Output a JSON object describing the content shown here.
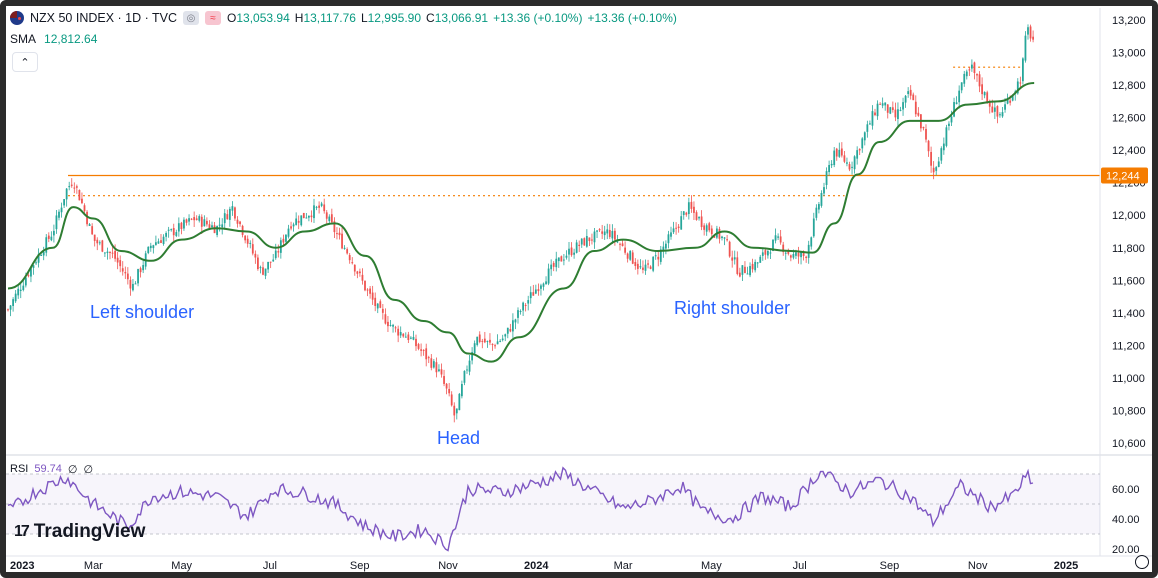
{
  "header": {
    "symbol": "NZX 50 INDEX · 1D · TVC",
    "open_label": "O",
    "open": "13,053.94",
    "high_label": "H",
    "high": "13,117.76",
    "low_label": "L",
    "low": "12,995.90",
    "close_label": "C",
    "close": "13,066.91",
    "change": "+13.36 (+0.10%)",
    "change2": "+13.36 (+0.10%)",
    "btn_eye_icon": "eye-icon",
    "btn_alert_icon": "wave-icon"
  },
  "sma": {
    "label": "SMA",
    "value": "12,812.64"
  },
  "rsi": {
    "label": "RSI",
    "value": "59.74",
    "v2": "∅",
    "v3": "∅"
  },
  "logo": {
    "mark": "17",
    "text": "TradingView"
  },
  "colors": {
    "up": "#26a69a",
    "down": "#ef5350",
    "sma": "#2e7d32",
    "rsi": "#7e57c2",
    "resistance": "#f57c00",
    "annotation": "#2962ff",
    "price_tag": "#f57c00"
  },
  "chart_data": [
    {
      "type": "candlestick",
      "title": "NZX 50 INDEX · 1D · TVC",
      "x_ticks": [
        "2023",
        "Mar",
        "May",
        "Jul",
        "Sep",
        "Nov",
        "2024",
        "Mar",
        "May",
        "Jul",
        "Sep",
        "Nov",
        "2025"
      ],
      "y_ticks": [
        "13,200",
        "13,000",
        "12,800",
        "12,600",
        "12,400",
        "12,200",
        "12,000",
        "11,800",
        "11,600",
        "11,400",
        "11,200",
        "11,000",
        "10,800",
        "10,600"
      ],
      "ylim": [
        10550,
        13250
      ],
      "price_tag": "12,244",
      "horizontal_levels": [
        {
          "value": 12244,
          "style": "solid",
          "from": "2023-02",
          "to": "2025-01"
        },
        {
          "value": 12120,
          "style": "dotted",
          "from": "2023-02",
          "to": "2024-08"
        },
        {
          "value": 12910,
          "style": "dotted",
          "from": "2024-10",
          "to": "2024-12"
        }
      ],
      "annotations": [
        {
          "text": "Left shoulder",
          "date": "2023-04"
        },
        {
          "text": "Head",
          "date": "2023-11"
        },
        {
          "text": "Right shoulder",
          "date": "2024-05"
        }
      ],
      "close_path": [
        [
          "2023-01-01",
          11420
        ],
        [
          "2023-01-15",
          11650
        ],
        [
          "2023-02-01",
          11900
        ],
        [
          "2023-02-10",
          12150
        ],
        [
          "2023-02-15",
          12220
        ],
        [
          "2023-02-22",
          12050
        ],
        [
          "2023-03-01",
          11850
        ],
        [
          "2023-03-15",
          11750
        ],
        [
          "2023-03-28",
          11560
        ],
        [
          "2023-04-10",
          11820
        ],
        [
          "2023-04-25",
          11900
        ],
        [
          "2023-05-10",
          11980
        ],
        [
          "2023-05-25",
          11920
        ],
        [
          "2023-06-05",
          12050
        ],
        [
          "2023-06-15",
          11850
        ],
        [
          "2023-06-25",
          11650
        ],
        [
          "2023-07-05",
          11750
        ],
        [
          "2023-07-15",
          11950
        ],
        [
          "2023-07-25",
          12000
        ],
        [
          "2023-08-05",
          12050
        ],
        [
          "2023-08-15",
          11900
        ],
        [
          "2023-08-25",
          11750
        ],
        [
          "2023-09-05",
          11550
        ],
        [
          "2023-09-15",
          11400
        ],
        [
          "2023-09-25",
          11300
        ],
        [
          "2023-10-05",
          11250
        ],
        [
          "2023-10-15",
          11150
        ],
        [
          "2023-10-25",
          11050
        ],
        [
          "2023-11-01",
          10900
        ],
        [
          "2023-11-06",
          10750
        ],
        [
          "2023-11-12",
          11000
        ],
        [
          "2023-11-20",
          11250
        ],
        [
          "2023-12-01",
          11200
        ],
        [
          "2023-12-10",
          11250
        ],
        [
          "2023-12-20",
          11400
        ],
        [
          "2024-01-05",
          11600
        ],
        [
          "2024-01-20",
          11750
        ],
        [
          "2024-02-05",
          11850
        ],
        [
          "2024-02-20",
          11900
        ],
        [
          "2024-03-01",
          11800
        ],
        [
          "2024-03-15",
          11650
        ],
        [
          "2024-03-25",
          11750
        ],
        [
          "2024-04-05",
          11900
        ],
        [
          "2024-04-15",
          12050
        ],
        [
          "2024-04-25",
          11950
        ],
        [
          "2024-05-10",
          11850
        ],
        [
          "2024-05-20",
          11650
        ],
        [
          "2024-06-01",
          11700
        ],
        [
          "2024-06-15",
          11850
        ],
        [
          "2024-06-25",
          11750
        ],
        [
          "2024-07-05",
          11750
        ],
        [
          "2024-07-15",
          12100
        ],
        [
          "2024-07-25",
          12400
        ],
        [
          "2024-08-05",
          12300
        ],
        [
          "2024-08-15",
          12500
        ],
        [
          "2024-08-25",
          12700
        ],
        [
          "2024-09-05",
          12600
        ],
        [
          "2024-09-15",
          12750
        ],
        [
          "2024-09-25",
          12500
        ],
        [
          "2024-10-01",
          12250
        ],
        [
          "2024-10-10",
          12500
        ],
        [
          "2024-10-20",
          12800
        ],
        [
          "2024-10-28",
          12900
        ],
        [
          "2024-11-05",
          12750
        ],
        [
          "2024-11-15",
          12600
        ],
        [
          "2024-11-25",
          12750
        ],
        [
          "2024-12-01",
          12850
        ],
        [
          "2024-12-05",
          13150
        ],
        [
          "2024-12-10",
          13066.91
        ]
      ],
      "sma_path": [
        [
          "2023-01-01",
          11550
        ],
        [
          "2023-02-01",
          11800
        ],
        [
          "2023-02-15",
          12050
        ],
        [
          "2023-03-01",
          11980
        ],
        [
          "2023-03-20",
          11780
        ],
        [
          "2023-04-10",
          11720
        ],
        [
          "2023-05-01",
          11850
        ],
        [
          "2023-05-25",
          11920
        ],
        [
          "2023-06-15",
          11900
        ],
        [
          "2023-07-05",
          11800
        ],
        [
          "2023-07-25",
          11900
        ],
        [
          "2023-08-15",
          11950
        ],
        [
          "2023-09-05",
          11750
        ],
        [
          "2023-09-25",
          11480
        ],
        [
          "2023-10-15",
          11350
        ],
        [
          "2023-11-01",
          11280
        ],
        [
          "2023-11-15",
          11150
        ],
        [
          "2023-12-01",
          11100
        ],
        [
          "2023-12-20",
          11250
        ],
        [
          "2024-01-20",
          11550
        ],
        [
          "2024-02-10",
          11780
        ],
        [
          "2024-03-01",
          11850
        ],
        [
          "2024-03-25",
          11780
        ],
        [
          "2024-04-20",
          11800
        ],
        [
          "2024-05-10",
          11900
        ],
        [
          "2024-05-30",
          11800
        ],
        [
          "2024-06-25",
          11780
        ],
        [
          "2024-07-10",
          11770
        ],
        [
          "2024-07-25",
          11950
        ],
        [
          "2024-08-10",
          12250
        ],
        [
          "2024-08-25",
          12450
        ],
        [
          "2024-09-15",
          12580
        ],
        [
          "2024-10-05",
          12580
        ],
        [
          "2024-10-25",
          12680
        ],
        [
          "2024-11-15",
          12700
        ],
        [
          "2024-12-10",
          12812.64
        ]
      ]
    },
    {
      "type": "line",
      "title": "RSI",
      "y_ticks": [
        "60.00",
        "40.00",
        "20.00"
      ],
      "ylim": [
        18,
        78
      ],
      "levels": [
        70,
        50,
        30
      ],
      "series": [
        {
          "name": "RSI",
          "points": [
            [
              "2023-01-01",
              45
            ],
            [
              "2023-01-20",
              58
            ],
            [
              "2023-02-10",
              68
            ],
            [
              "2023-03-01",
              50
            ],
            [
              "2023-03-25",
              35
            ],
            [
              "2023-04-10",
              55
            ],
            [
              "2023-05-01",
              58
            ],
            [
              "2023-05-25",
              55
            ],
            [
              "2023-06-15",
              42
            ],
            [
              "2023-07-05",
              60
            ],
            [
              "2023-07-25",
              57
            ],
            [
              "2023-08-15",
              50
            ],
            [
              "2023-09-05",
              35
            ],
            [
              "2023-09-25",
              28
            ],
            [
              "2023-10-15",
              33
            ],
            [
              "2023-11-01",
              22
            ],
            [
              "2023-11-15",
              60
            ],
            [
              "2023-12-10",
              58
            ],
            [
              "2024-01-05",
              65
            ],
            [
              "2024-01-20",
              70
            ],
            [
              "2024-02-10",
              58
            ],
            [
              "2024-03-01",
              47
            ],
            [
              "2024-03-20",
              52
            ],
            [
              "2024-04-10",
              62
            ],
            [
              "2024-04-25",
              45
            ],
            [
              "2024-05-15",
              40
            ],
            [
              "2024-06-05",
              55
            ],
            [
              "2024-06-25",
              48
            ],
            [
              "2024-07-15",
              72
            ],
            [
              "2024-08-05",
              58
            ],
            [
              "2024-08-25",
              66
            ],
            [
              "2024-09-15",
              55
            ],
            [
              "2024-10-01",
              38
            ],
            [
              "2024-10-20",
              62
            ],
            [
              "2024-11-10",
              48
            ],
            [
              "2024-11-25",
              55
            ],
            [
              "2024-12-05",
              69
            ],
            [
              "2024-12-10",
              59.74
            ]
          ]
        }
      ]
    }
  ]
}
